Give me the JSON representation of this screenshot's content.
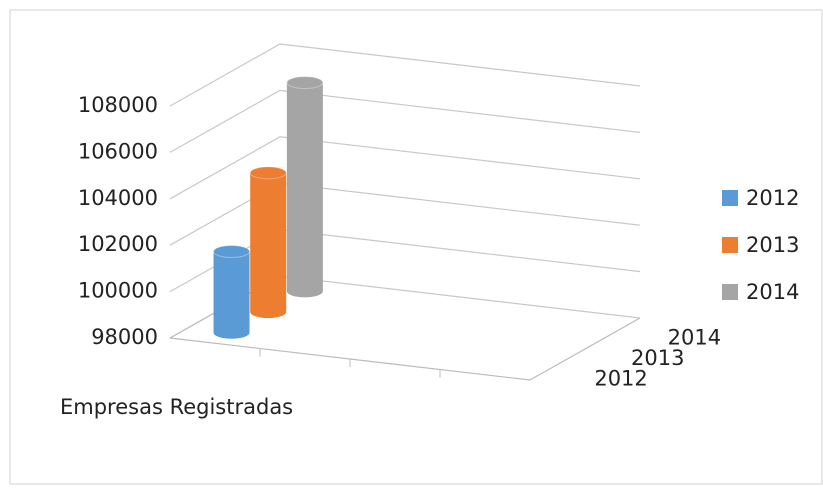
{
  "chart_data": {
    "type": "bar3d",
    "categories": [
      "Empresas Registradas"
    ],
    "series": [
      {
        "name": "2012",
        "color": "#5b9bd5",
        "values": [
          101500
        ]
      },
      {
        "name": "2013",
        "color": "#ed7d31",
        "values": [
          104000
        ]
      },
      {
        "name": "2014",
        "color": "#a5a5a5",
        "values": [
          107000
        ]
      }
    ],
    "ylim": [
      98000,
      108000
    ],
    "yticks": [
      98000,
      100000,
      102000,
      104000,
      106000,
      108000
    ],
    "grid": true,
    "legend": "right"
  }
}
